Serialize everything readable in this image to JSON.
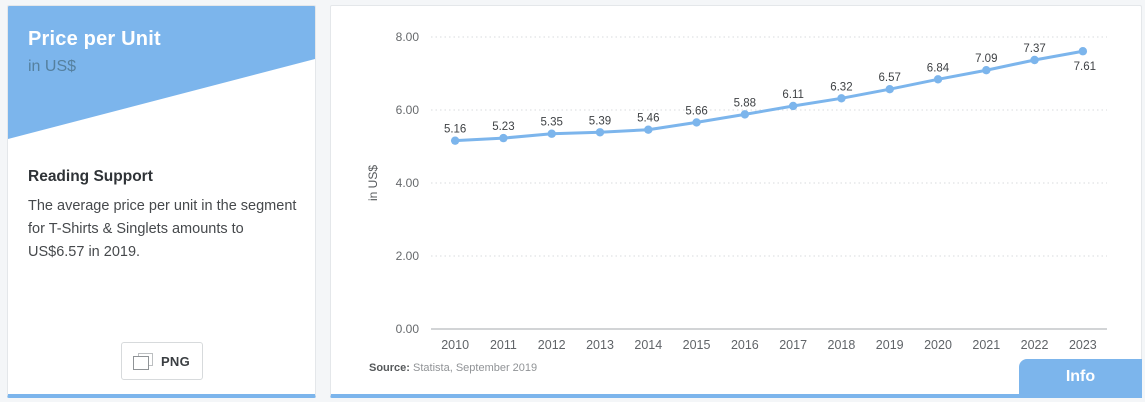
{
  "colors": {
    "accent": "#7cb5ec",
    "page_background": "#f4f6f8",
    "grid_line": "#d8dbde",
    "axis_line": "#a6aaad",
    "tick_text": "#66696c",
    "data_label_text": "#3f4245",
    "header_subtitle": "#55809f"
  },
  "left_panel": {
    "title": "Price per Unit",
    "subtitle": "in US$",
    "reading_support_title": "Reading Support",
    "reading_support_text": "The average price per unit in the segment for T-Shirts & Singlets amounts to US$6.57 in 2019.",
    "download_button_label": "PNG",
    "download_button_icon": "image-icon"
  },
  "chart_panel": {
    "source_label": "Source:",
    "source_text": " Statista, September 2019",
    "info_button_label": "Info"
  },
  "chart_data": {
    "type": "line",
    "title": "Price per Unit",
    "categories": [
      "2010",
      "2011",
      "2012",
      "2013",
      "2014",
      "2015",
      "2016",
      "2017",
      "2018",
      "2019",
      "2020",
      "2021",
      "2022",
      "2023"
    ],
    "values": [
      5.16,
      5.23,
      5.35,
      5.39,
      5.46,
      5.66,
      5.88,
      6.11,
      6.32,
      6.57,
      6.84,
      7.09,
      7.37,
      7.61
    ],
    "xlabel": "",
    "ylabel": "in US$",
    "ylim": [
      0,
      8
    ],
    "yticks": [
      0,
      2,
      4,
      6,
      8
    ],
    "ytick_decimals": 2,
    "grid": "dotted-horizontal",
    "legend": "none",
    "data_labels": true,
    "marker": "circle"
  }
}
